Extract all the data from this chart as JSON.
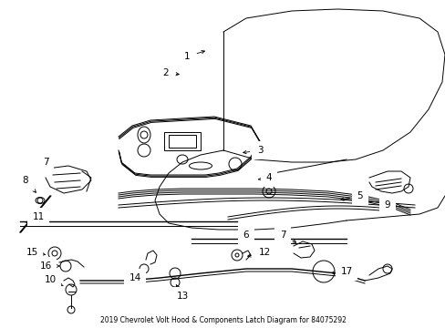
{
  "title": "2019 Chevrolet Volt Hood & Components Latch Diagram for 84075292",
  "bg_color": "#ffffff",
  "line_color": "#000000",
  "label_color": "#000000",
  "fig_width": 4.89,
  "fig_height": 3.6,
  "dpi": 100
}
